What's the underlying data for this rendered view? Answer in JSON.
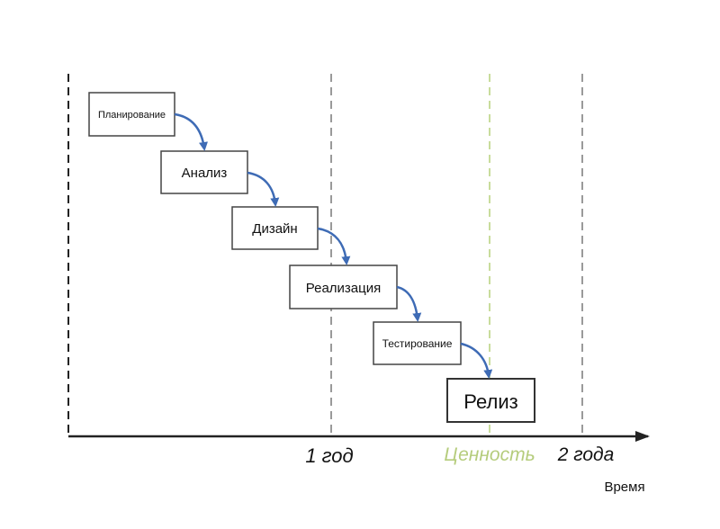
{
  "stages": [
    {
      "label": "Планирование"
    },
    {
      "label": "Анализ"
    },
    {
      "label": "Дизайн"
    },
    {
      "label": "Реализация"
    },
    {
      "label": "Тестирование"
    },
    {
      "label": "Релиз"
    }
  ],
  "markers": {
    "one_year": "1 год",
    "value": "Ценность",
    "two_years": "2 года"
  },
  "axis_label": "Время",
  "colors": {
    "arrow": "#3e6bb5",
    "value_line": "#c9dc9c",
    "value_text": "#b5cc7c",
    "guide_line": "#9a9a9a",
    "axis": "#222222"
  }
}
